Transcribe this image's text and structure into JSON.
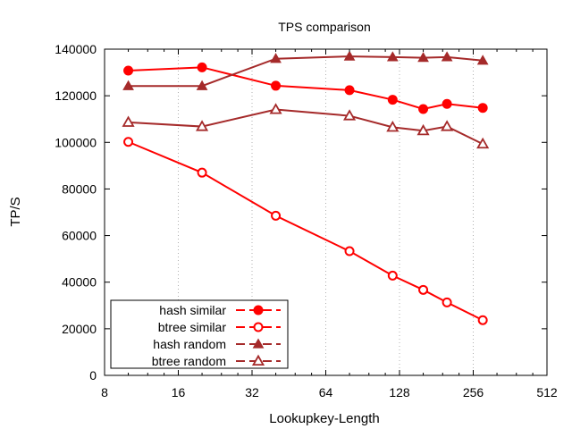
{
  "chart_data": {
    "type": "line",
    "title": "TPS comparison",
    "xlabel": "Lookupkey-Length",
    "ylabel": "TP/S",
    "x_scale": "log2",
    "xlim": [
      8,
      512
    ],
    "ylim": [
      0,
      140000
    ],
    "x_ticks": [
      8,
      16,
      32,
      64,
      128,
      256,
      512
    ],
    "x_tick_labels": [
      "8",
      "16",
      "32",
      "64",
      "128",
      "256",
      "512"
    ],
    "y_ticks": [
      0,
      20000,
      40000,
      60000,
      80000,
      100000,
      120000,
      140000
    ],
    "y_tick_labels": [
      "0",
      "20000",
      "40000",
      "60000",
      "80000",
      "100000",
      "120000",
      "140000"
    ],
    "grid": "vertical dotted",
    "legend_position": "bottom-left",
    "series": [
      {
        "name": "hash similar",
        "color": "#ff0000",
        "marker": "filled-circle",
        "x": [
          10,
          20,
          40,
          80,
          120,
          160,
          200,
          280
        ],
        "values": [
          130800,
          132200,
          124300,
          122400,
          118300,
          114300,
          116500,
          114800
        ]
      },
      {
        "name": "btree similar",
        "color": "#ff0000",
        "marker": "open-circle",
        "x": [
          10,
          20,
          40,
          80,
          120,
          160,
          200,
          280
        ],
        "values": [
          100200,
          87000,
          68500,
          53300,
          42800,
          36700,
          31300,
          23700
        ]
      },
      {
        "name": "hash random",
        "color": "#a52a2a",
        "marker": "filled-triangle",
        "x": [
          10,
          20,
          40,
          80,
          120,
          160,
          200,
          280
        ],
        "values": [
          124200,
          124200,
          135900,
          136900,
          136600,
          136300,
          136600,
          135100
        ]
      },
      {
        "name": "btree random",
        "color": "#a52a2a",
        "marker": "open-triangle",
        "x": [
          10,
          20,
          40,
          80,
          120,
          160,
          200,
          280
        ],
        "values": [
          108600,
          106800,
          114100,
          111400,
          106500,
          105000,
          106800,
          99300
        ]
      }
    ]
  }
}
